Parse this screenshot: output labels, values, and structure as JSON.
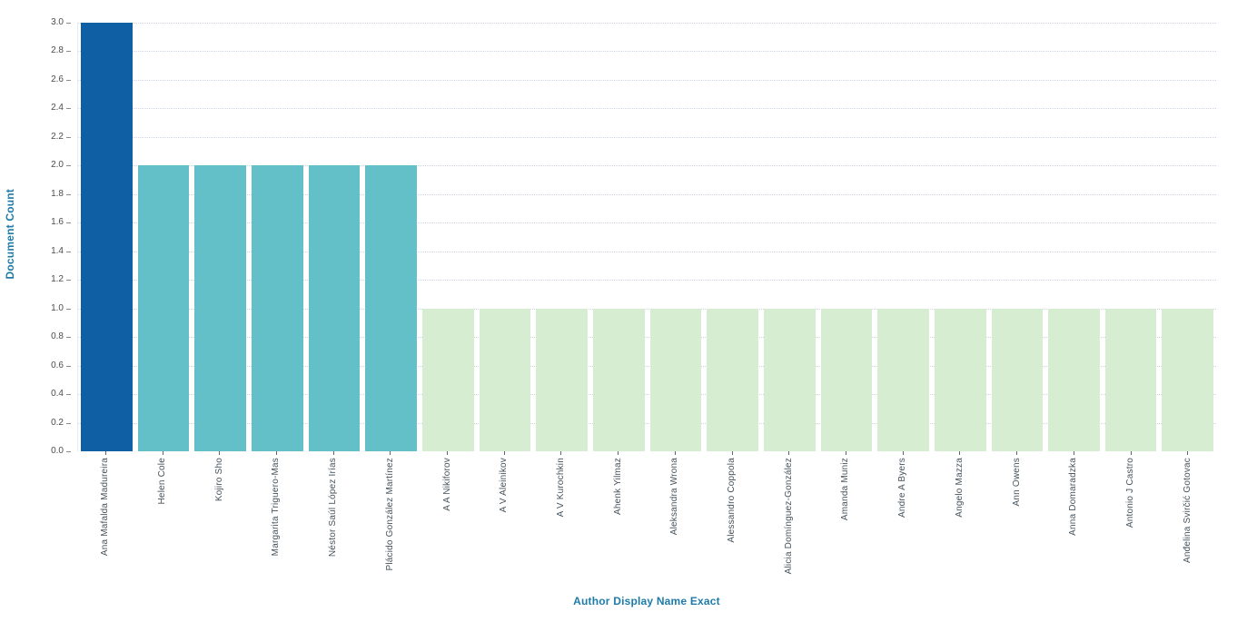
{
  "chart_data": {
    "type": "bar",
    "title": "",
    "xlabel": "Author Display Name Exact",
    "ylabel": "Document Count",
    "ylim": [
      0,
      3
    ],
    "ytick_step": 0.2,
    "yticks": [
      "0.0",
      "0.2",
      "0.4",
      "0.6",
      "0.8",
      "1.0",
      "1.2",
      "1.4",
      "1.6",
      "1.8",
      "2.0",
      "2.2",
      "2.4",
      "2.6",
      "2.8",
      "3.0"
    ],
    "grid": "horizontal-dotted",
    "legend_position": "none",
    "categories": [
      "Ana Mafalda Madureira",
      "Helen Cole",
      "Kojiro Sho",
      "Margarita Triguero-Mas",
      "Néstor Saúl López Irías",
      "Plácido González Martínez",
      "A A Nikiforov",
      "A V Aleinikov",
      "A V Kurochkin",
      "Ahenk Yilmaz",
      "Aleksandra Wrona",
      "Alessandro Coppola",
      "Alicia Domínguez-González",
      "Amanda Muniz",
      "Andre A Byers",
      "Angelo Mazza",
      "Ann Owens",
      "Anna Domaradzka",
      "Antonio J Castro",
      "Anđelina Svirčić Gotovac"
    ],
    "values": [
      3,
      2,
      2,
      2,
      2,
      2,
      1,
      1,
      1,
      1,
      1,
      1,
      1,
      1,
      1,
      1,
      1,
      1,
      1,
      1
    ],
    "color_by_value": {
      "3": "#0e5fa4",
      "2": "#63c0c8",
      "1": "#d6edd2"
    }
  },
  "colors": {
    "axis_title": "#1d7ba9",
    "ytick_label": "#4c4c4c",
    "ytick_dash": "#8a8a8a",
    "xtick_label": "#45525c",
    "xtick_dash": "#5a6570",
    "gridline": "#ccd4e4",
    "background": "#ffffff"
  }
}
